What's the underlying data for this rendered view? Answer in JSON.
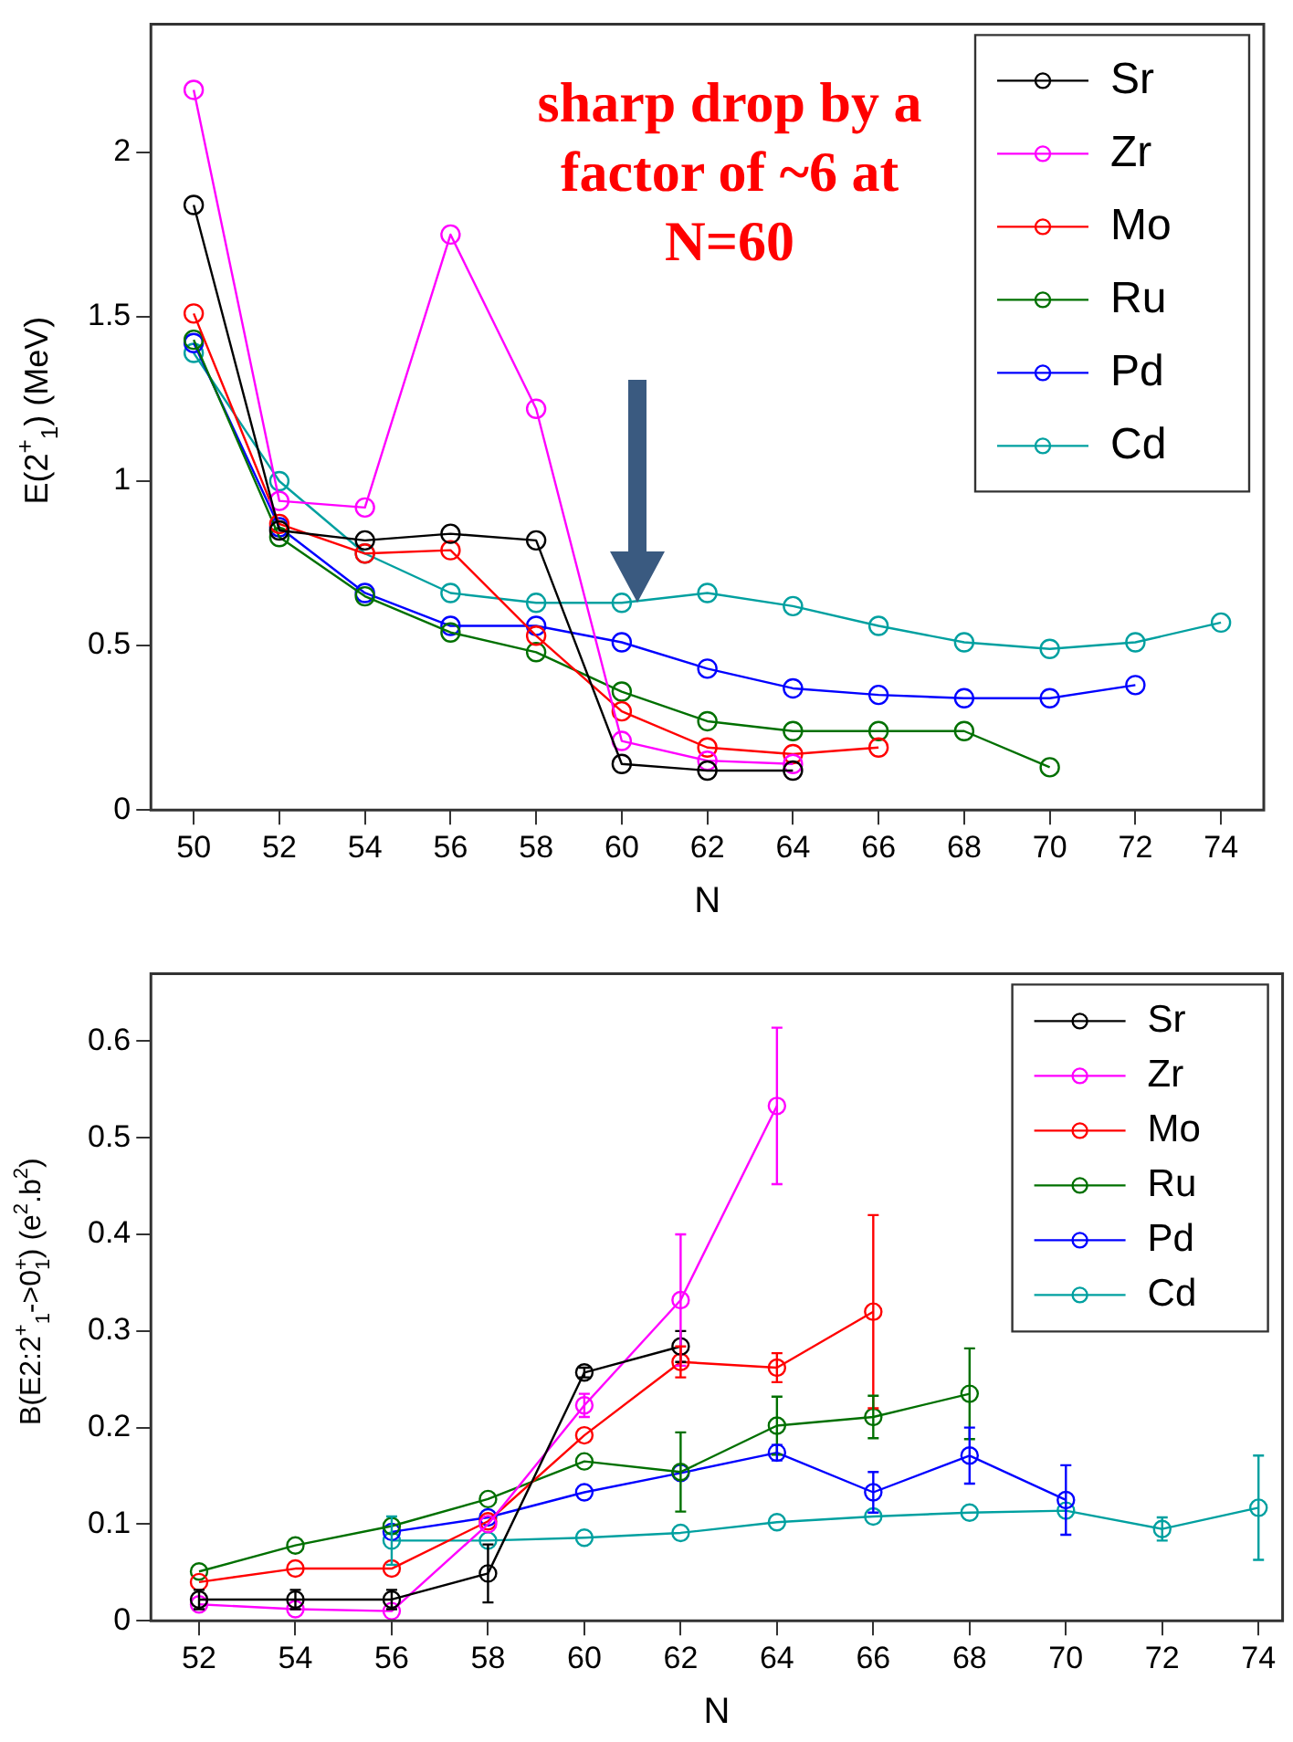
{
  "chart_data": [
    {
      "type": "line",
      "xlabel": "N",
      "ylabel": "E(2$^{+}$$_{1}$) (MeV)",
      "xlim": [
        49,
        75
      ],
      "xticks": [
        50,
        52,
        54,
        56,
        58,
        60,
        62,
        64,
        66,
        68,
        70,
        72,
        74
      ],
      "ylim": [
        0,
        2.39
      ],
      "yticks": [
        0,
        {
          "value": 0.5,
          "label": "0.5"
        },
        1,
        {
          "value": 1.5,
          "label": "1.5"
        },
        2
      ],
      "marker": "circle",
      "legend": "top right",
      "annotations": [
        "sharp drop by a factor of ~6 at N=60"
      ],
      "series": [
        {
          "name": "Sr",
          "color": "#000000",
          "x": [
            50,
            52,
            54,
            56,
            58,
            60,
            62,
            64
          ],
          "values": [
            1.84,
            0.85,
            0.82,
            0.84,
            0.82,
            0.14,
            0.12,
            0.12
          ]
        },
        {
          "name": "Zr",
          "color": "#ff00ff",
          "x": [
            50,
            52,
            54,
            56,
            58,
            60,
            62,
            64
          ],
          "values": [
            2.19,
            0.94,
            0.92,
            1.75,
            1.22,
            0.21,
            0.15,
            0.14
          ]
        },
        {
          "name": "Mo",
          "color": "#ff0000",
          "x": [
            50,
            52,
            54,
            56,
            58,
            60,
            62,
            64,
            66
          ],
          "values": [
            1.51,
            0.87,
            0.78,
            0.79,
            0.53,
            0.3,
            0.19,
            0.17,
            0.19
          ]
        },
        {
          "name": "Ru",
          "color": "#007000",
          "x": [
            50,
            52,
            54,
            56,
            58,
            60,
            62,
            64,
            66,
            68,
            70
          ],
          "values": [
            1.43,
            0.83,
            0.65,
            0.54,
            0.48,
            0.36,
            0.27,
            0.24,
            0.24,
            0.24,
            0.13
          ]
        },
        {
          "name": "Pd",
          "color": "#0000ff",
          "x": [
            50,
            52,
            54,
            56,
            58,
            60,
            62,
            64,
            66,
            68,
            70,
            72
          ],
          "values": [
            1.42,
            0.86,
            0.66,
            0.56,
            0.56,
            0.51,
            0.43,
            0.37,
            0.35,
            0.34,
            0.34,
            0.38
          ]
        },
        {
          "name": "Cd",
          "color": "#00a0a0",
          "x": [
            50,
            52,
            54,
            56,
            58,
            60,
            62,
            64,
            66,
            68,
            70,
            72,
            74
          ],
          "values": [
            1.39,
            1.0,
            0.78,
            0.66,
            0.63,
            0.63,
            0.66,
            0.62,
            0.56,
            0.51,
            0.49,
            0.51,
            0.57
          ]
        }
      ]
    },
    {
      "type": "line",
      "xlabel": "N",
      "ylabel": "B(E2:2$^{+}$$_{1}$->0$^{+}$$_{1}$) (e$^{2}$.b$^{2}$)",
      "xlim": [
        51,
        74.5
      ],
      "xticks": [
        52,
        54,
        56,
        58,
        60,
        62,
        64,
        66,
        68,
        70,
        72,
        74
      ],
      "ylim": [
        0,
        0.67
      ],
      "yticks": [
        0,
        {
          "value": 0.1,
          "label": "0.1"
        },
        {
          "value": 0.2,
          "label": "0.2"
        },
        {
          "value": 0.3,
          "label": "0.3"
        },
        {
          "value": 0.4,
          "label": "0.4"
        },
        {
          "value": 0.5,
          "label": "0.5"
        },
        {
          "value": 0.6,
          "label": "0.6"
        }
      ],
      "marker": "circle",
      "legend": "top right",
      "series": [
        {
          "name": "Sr",
          "color": "#000000",
          "x": [
            52,
            54,
            56,
            58,
            60,
            62
          ],
          "values": [
            0.022,
            0.022,
            0.022,
            0.049,
            0.257,
            0.284
          ],
          "errors": [
            0.01,
            0.01,
            0.01,
            0.03,
            0.005,
            0.016
          ]
        },
        {
          "name": "Zr",
          "color": "#ff00ff",
          "x": [
            52,
            54,
            56,
            58,
            60,
            62,
            64
          ],
          "values": [
            0.017,
            0.012,
            0.01,
            0.1,
            0.223,
            0.332,
            0.533
          ],
          "errors": [
            null,
            null,
            null,
            null,
            0.012,
            0.068,
            0.081
          ]
        },
        {
          "name": "Mo",
          "color": "#ff0000",
          "x": [
            52,
            54,
            56,
            58,
            60,
            62,
            64,
            66
          ],
          "values": [
            0.04,
            0.054,
            0.054,
            0.103,
            0.192,
            0.268,
            0.262,
            0.32
          ],
          "errors": [
            null,
            null,
            null,
            null,
            null,
            0.016,
            0.015,
            0.1
          ]
        },
        {
          "name": "Ru",
          "color": "#007000",
          "x": [
            52,
            54,
            56,
            58,
            60,
            62,
            64,
            66,
            68
          ],
          "values": [
            0.051,
            0.078,
            0.098,
            0.126,
            0.165,
            0.154,
            0.202,
            0.211,
            0.235
          ],
          "errors": [
            null,
            null,
            null,
            null,
            null,
            0.041,
            0.03,
            0.022,
            0.047
          ]
        },
        {
          "name": "Pd",
          "color": "#0000ff",
          "x": [
            56,
            58,
            60,
            62,
            64,
            66,
            68,
            70
          ],
          "values": [
            0.092,
            0.107,
            0.133,
            0.153,
            0.174,
            0.133,
            0.171,
            0.125
          ],
          "errors": [
            null,
            null,
            null,
            null,
            0.008,
            0.021,
            0.029,
            0.036
          ]
        },
        {
          "name": "Cd",
          "color": "#00a0a0",
          "x": [
            56,
            58,
            60,
            62,
            64,
            66,
            68,
            70,
            72,
            74
          ],
          "values": [
            0.083,
            0.083,
            0.086,
            0.091,
            0.102,
            0.108,
            0.112,
            0.114,
            0.095,
            0.117
          ],
          "errors": [
            0.025,
            null,
            null,
            null,
            null,
            null,
            null,
            null,
            0.012,
            0.054
          ]
        }
      ]
    }
  ]
}
